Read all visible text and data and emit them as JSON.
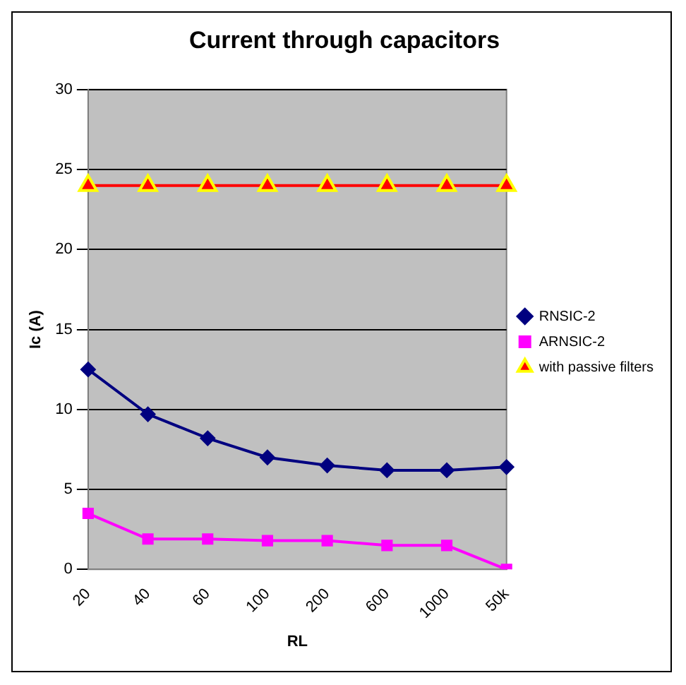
{
  "chart_data": {
    "type": "line",
    "title": "Current through capacitors",
    "xlabel": "RL",
    "ylabel": "Ic (A)",
    "categories": [
      "20",
      "40",
      "60",
      "100",
      "200",
      "600",
      "1000",
      "50k"
    ],
    "series": [
      {
        "name": "RNSIC-2",
        "color": "#000080",
        "marker": "diamond",
        "values": [
          12.5,
          9.7,
          8.2,
          7.0,
          6.5,
          6.2,
          6.2,
          6.4
        ]
      },
      {
        "name": "ARNSIC-2",
        "color": "#ff00ff",
        "marker": "square",
        "values": [
          3.5,
          1.9,
          1.9,
          1.8,
          1.8,
          1.5,
          1.5,
          0
        ]
      },
      {
        "name": "with passive filters",
        "color": "#ff0000",
        "marker": "triangle",
        "values": [
          24,
          24,
          24,
          24,
          24,
          24,
          24,
          24
        ]
      }
    ],
    "ylim": [
      0,
      30
    ],
    "yticks": [
      0,
      5,
      10,
      15,
      20,
      25,
      30
    ],
    "grid": "y",
    "legend": "right"
  }
}
